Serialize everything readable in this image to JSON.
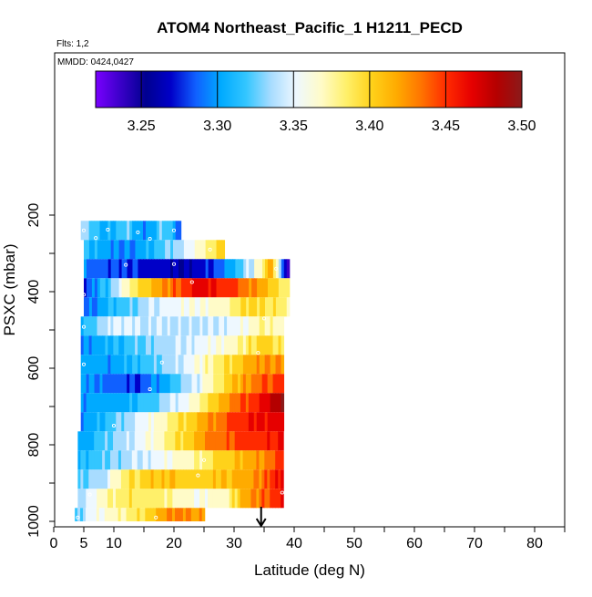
{
  "header": {
    "title": "ATOM4 Northeast_Pacific_1 H1211_PECD",
    "flights": "Flts: 1,2",
    "dates": "MMDD: 0424,0427"
  },
  "colors": {
    "scale": [
      "#7a00ff",
      "#3a00c8",
      "#000090",
      "#0000c8",
      "#1060ff",
      "#00aaff",
      "#33c6ff",
      "#a8dcff",
      "#eef8ff",
      "#fffbc8",
      "#fff06a",
      "#ffd21a",
      "#ffab00",
      "#ff7300",
      "#ff2a00",
      "#e60000",
      "#b40000",
      "#8b1a1a"
    ],
    "axis": "#000000"
  },
  "chart_data": {
    "type": "heatmap",
    "title": "ATOM4 Northeast_Pacific_1 H1211_PECD",
    "xlabel": "Latitude (deg N)",
    "ylabel": "PSXC (mbar)",
    "xlim": [
      0,
      85
    ],
    "ylim": [
      1000,
      0
    ],
    "x_ticks": [
      0,
      5,
      10,
      20,
      30,
      40,
      50,
      60,
      70,
      80
    ],
    "y_ticks": [
      200,
      400,
      600,
      800,
      1000
    ],
    "colorbar": {
      "min": 3.22,
      "max": 3.5,
      "ticks": [
        3.25,
        3.3,
        3.35,
        3.4,
        3.45,
        3.5
      ],
      "tick_labels": [
        "3.25",
        "3.30",
        "3.35",
        "3.40",
        "3.45",
        "3.50"
      ]
    },
    "rows": [
      {
        "p_top": 215,
        "p_bot": 265,
        "stops": [
          [
            4.5,
            3.34
          ],
          [
            8,
            3.3
          ],
          [
            12,
            3.33
          ],
          [
            15,
            3.29
          ],
          [
            18,
            3.33
          ],
          [
            21,
            3.28
          ]
        ]
      },
      {
        "p_top": 265,
        "p_bot": 315,
        "stops": [
          [
            5,
            3.31
          ],
          [
            12,
            3.29
          ],
          [
            18,
            3.32
          ],
          [
            22,
            3.35
          ],
          [
            26,
            3.38
          ],
          [
            28,
            3.4
          ]
        ]
      },
      {
        "p_top": 315,
        "p_bot": 365,
        "stops": [
          [
            5,
            3.29
          ],
          [
            10,
            3.28
          ],
          [
            16,
            3.27
          ],
          [
            22,
            3.26
          ],
          [
            28,
            3.29
          ],
          [
            33,
            3.35
          ],
          [
            36,
            3.42
          ],
          [
            39,
            3.22
          ]
        ]
      },
      {
        "p_top": 365,
        "p_bot": 415,
        "stops": [
          [
            5,
            3.28
          ],
          [
            9,
            3.32
          ],
          [
            14,
            3.4
          ],
          [
            19,
            3.43
          ],
          [
            24,
            3.47
          ],
          [
            29,
            3.45
          ],
          [
            34,
            3.42
          ],
          [
            39,
            3.38
          ]
        ]
      },
      {
        "p_top": 415,
        "p_bot": 465,
        "stops": [
          [
            5,
            3.29
          ],
          [
            10,
            3.31
          ],
          [
            15,
            3.34
          ],
          [
            22,
            3.36
          ],
          [
            28,
            3.37
          ],
          [
            33,
            3.4
          ],
          [
            39,
            3.38
          ]
        ]
      },
      {
        "p_top": 465,
        "p_bot": 515,
        "stops": [
          [
            4.5,
            3.31
          ],
          [
            10,
            3.35
          ],
          [
            16,
            3.34
          ],
          [
            24,
            3.34
          ],
          [
            30,
            3.35
          ],
          [
            34,
            3.38
          ],
          [
            38,
            3.37
          ]
        ]
      },
      {
        "p_top": 515,
        "p_bot": 565,
        "stops": [
          [
            4.5,
            3.29
          ],
          [
            10,
            3.31
          ],
          [
            16,
            3.33
          ],
          [
            24,
            3.35
          ],
          [
            30,
            3.37
          ],
          [
            34,
            3.4
          ],
          [
            38,
            3.39
          ]
        ]
      },
      {
        "p_top": 565,
        "p_bot": 615,
        "stops": [
          [
            4.5,
            3.3
          ],
          [
            10,
            3.3
          ],
          [
            16,
            3.32
          ],
          [
            22,
            3.35
          ],
          [
            28,
            3.39
          ],
          [
            33,
            3.42
          ],
          [
            38,
            3.43
          ]
        ]
      },
      {
        "p_top": 615,
        "p_bot": 665,
        "stops": [
          [
            4.5,
            3.3
          ],
          [
            8,
            3.29
          ],
          [
            14,
            3.28
          ],
          [
            18,
            3.3
          ],
          [
            24,
            3.35
          ],
          [
            30,
            3.41
          ],
          [
            34,
            3.44
          ],
          [
            38,
            3.45
          ]
        ]
      },
      {
        "p_top": 665,
        "p_bot": 715,
        "stops": [
          [
            4.5,
            3.3
          ],
          [
            10,
            3.3
          ],
          [
            16,
            3.32
          ],
          [
            22,
            3.36
          ],
          [
            28,
            3.42
          ],
          [
            34,
            3.46
          ],
          [
            38,
            3.49
          ]
        ]
      },
      {
        "p_top": 715,
        "p_bot": 765,
        "stops": [
          [
            4.5,
            3.3
          ],
          [
            10,
            3.32
          ],
          [
            16,
            3.36
          ],
          [
            22,
            3.4
          ],
          [
            28,
            3.44
          ],
          [
            33,
            3.46
          ],
          [
            38,
            3.47
          ]
        ]
      },
      {
        "p_top": 765,
        "p_bot": 815,
        "stops": [
          [
            4,
            3.3
          ],
          [
            8,
            3.32
          ],
          [
            14,
            3.35
          ],
          [
            20,
            3.39
          ],
          [
            26,
            3.43
          ],
          [
            32,
            3.45
          ],
          [
            38,
            3.46
          ]
        ]
      },
      {
        "p_top": 815,
        "p_bot": 865,
        "stops": [
          [
            4,
            3.31
          ],
          [
            10,
            3.33
          ],
          [
            16,
            3.35
          ],
          [
            22,
            3.37
          ],
          [
            28,
            3.4
          ],
          [
            33,
            3.42
          ],
          [
            38,
            3.45
          ]
        ]
      },
      {
        "p_top": 865,
        "p_bot": 915,
        "stops": [
          [
            4,
            3.32
          ],
          [
            8,
            3.34
          ],
          [
            12,
            3.39
          ],
          [
            18,
            3.41
          ],
          [
            24,
            3.4
          ],
          [
            29,
            3.41
          ],
          [
            34,
            3.43
          ],
          [
            38,
            3.47
          ]
        ]
      },
      {
        "p_top": 915,
        "p_bot": 965,
        "stops": [
          [
            4,
            3.33
          ],
          [
            7,
            3.36
          ],
          [
            12,
            3.39
          ],
          [
            18,
            3.38
          ],
          [
            24,
            3.36
          ],
          [
            28,
            3.37
          ],
          [
            32,
            3.42
          ],
          [
            38,
            3.46
          ]
        ]
      },
      {
        "p_top": 965,
        "p_bot": 1000,
        "stops": [
          [
            3.5,
            3.32
          ],
          [
            6,
            3.35
          ],
          [
            10,
            3.37
          ],
          [
            16,
            3.4
          ],
          [
            20,
            3.43
          ],
          [
            25,
            3.42
          ]
        ]
      }
    ],
    "markers": [
      {
        "lat": 5,
        "p": 240
      },
      {
        "lat": 7,
        "p": 260
      },
      {
        "lat": 9,
        "p": 238
      },
      {
        "lat": 14,
        "p": 245
      },
      {
        "lat": 16,
        "p": 262
      },
      {
        "lat": 20,
        "p": 240
      },
      {
        "lat": 26,
        "p": 290
      },
      {
        "lat": 34,
        "p": 280
      },
      {
        "lat": 12,
        "p": 330
      },
      {
        "lat": 20,
        "p": 328
      },
      {
        "lat": 37,
        "p": 340
      },
      {
        "lat": 5,
        "p": 408
      },
      {
        "lat": 23,
        "p": 375
      },
      {
        "lat": 5,
        "p": 492
      },
      {
        "lat": 35,
        "p": 470
      },
      {
        "lat": 5,
        "p": 590
      },
      {
        "lat": 18,
        "p": 585
      },
      {
        "lat": 34,
        "p": 560
      },
      {
        "lat": 16,
        "p": 655
      },
      {
        "lat": 10,
        "p": 750
      },
      {
        "lat": 25,
        "p": 840
      },
      {
        "lat": 24,
        "p": 880
      },
      {
        "lat": 6,
        "p": 930
      },
      {
        "lat": 38,
        "p": 925
      },
      {
        "lat": 4,
        "p": 990
      },
      {
        "lat": 17,
        "p": 990
      }
    ],
    "arrow": {
      "lat": 34.5
    }
  }
}
